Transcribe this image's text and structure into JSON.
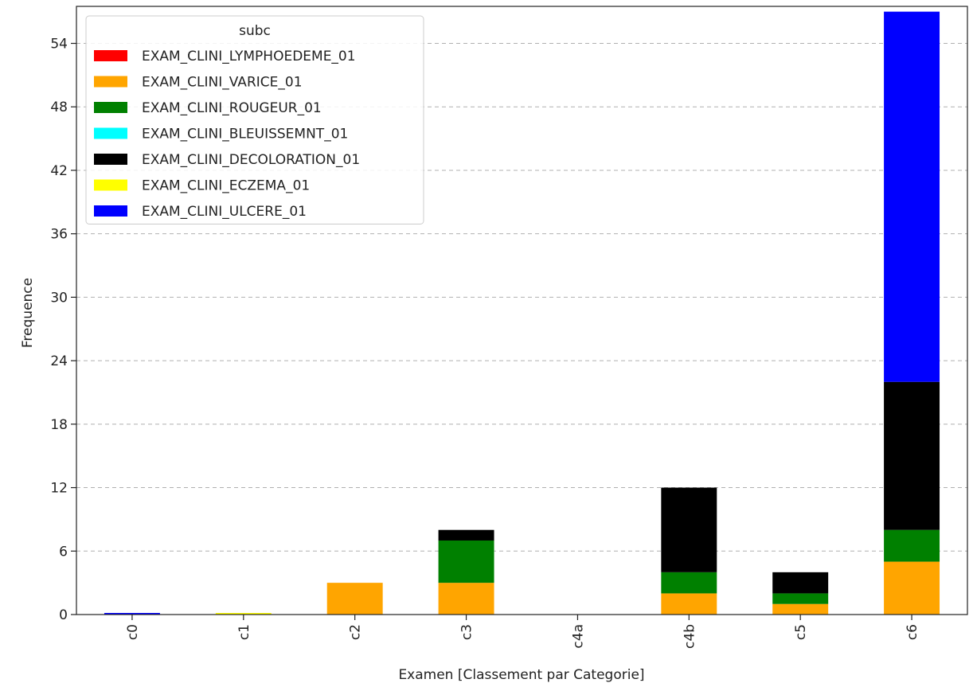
{
  "chart_data": {
    "type": "bar",
    "stacked": true,
    "title": "",
    "xlabel": "Examen [Classement par Categorie]",
    "ylabel": "Frequence",
    "ylim": [
      0,
      57.5
    ],
    "yticks": [
      0,
      6,
      12,
      18,
      24,
      30,
      36,
      42,
      48,
      54
    ],
    "grid": "y-dashed",
    "categories": [
      "c0",
      "c1",
      "c2",
      "c3",
      "c4a",
      "c4b",
      "c5",
      "c6"
    ],
    "legend": {
      "title": "subc",
      "placement": "upper-left"
    },
    "series": [
      {
        "name": "EXAM_CLINI_LYMPHOEDEME_01",
        "color": "#ff0000",
        "values": [
          0,
          0,
          0,
          0,
          0,
          0,
          0,
          0
        ]
      },
      {
        "name": "EXAM_CLINI_VARICE_01",
        "color": "#ffa500",
        "values": [
          0,
          0,
          3,
          3,
          0,
          2,
          1,
          5
        ]
      },
      {
        "name": "EXAM_CLINI_ROUGEUR_01",
        "color": "#008000",
        "values": [
          0,
          0,
          0,
          4,
          0,
          2,
          1,
          3
        ]
      },
      {
        "name": "EXAM_CLINI_BLEUISSEMNT_01",
        "color": "#00ffff",
        "values": [
          0,
          0,
          0,
          0,
          0,
          0,
          0,
          0
        ]
      },
      {
        "name": "EXAM_CLINI_DECOLORATION_01",
        "color": "#000000",
        "values": [
          0,
          0,
          0,
          1,
          0,
          8,
          2,
          14
        ]
      },
      {
        "name": "EXAM_CLINI_ECZEMA_01",
        "color": "#ffff00",
        "values": [
          0,
          0.15,
          0,
          0,
          0,
          0,
          0,
          0
        ]
      },
      {
        "name": "EXAM_CLINI_ULCERE_01",
        "color": "#0000ff",
        "values": [
          0.15,
          0,
          0,
          0,
          0,
          0,
          0,
          35
        ]
      }
    ]
  }
}
